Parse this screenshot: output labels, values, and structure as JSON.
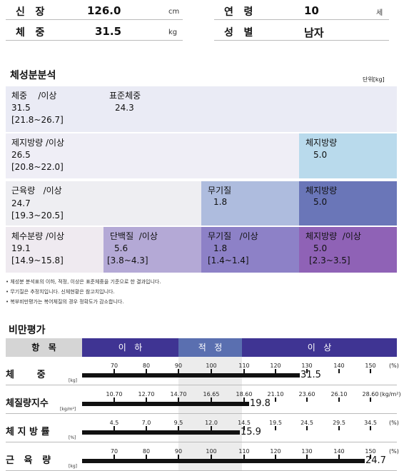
{
  "patient": {
    "height_label": "신   장",
    "height_value": "126.0",
    "height_unit": "cm",
    "age_label": "연   령",
    "age_value": "10",
    "age_unit": "세",
    "weight_label": "체   중",
    "weight_value": "31.5",
    "weight_unit": "kg",
    "sex_label": "성   별",
    "sex_value": "남자"
  },
  "composition": {
    "title": "체성분분석",
    "unit": "단위[kg]",
    "row1": {
      "name": "체중    /이상",
      "value": "31.5",
      "range": "[21.8~26.7]",
      "std_label": "표준체중",
      "std_value": "24.3"
    },
    "row2": {
      "name": "제지방량 /이상",
      "value": "26.5",
      "range": "[20.8~22.0]",
      "fat_label": "체지방량",
      "fat_value": "5.0"
    },
    "row3": {
      "name": "근육량   /이상",
      "value": "24.7",
      "range": "[19.3~20.5]",
      "min_label": "무기질",
      "min_value": "1.8",
      "fat_label": "체지방량",
      "fat_value": "5.0"
    },
    "row4": {
      "name": "체수분량 /이상",
      "value": "19.1",
      "range": "[14.9~15.8]",
      "prot_label": "단백질  /이상",
      "prot_value": "5.6",
      "prot_range": "[3.8~4.3]",
      "min_label": "무기질   /이상",
      "min_value": "1.8",
      "min_range": "[1.4~1.4]",
      "fat_label": "체지방량  /이상",
      "fat_value": "5.0",
      "fat_range": "[2.3~3.5]"
    },
    "notes": [
      "• 체성분 분석표의 이하, 적정, 이상은 표준체중을 기준으로 한 결과입니다.",
      "• 무기질은 추정치입니다.  신체현황은 참고치입니다.",
      "• 복부비만평가는 복어체질의 경우 정확도가 감소합니다."
    ]
  },
  "obesity": {
    "title": "비만평가",
    "col_item": "항   목",
    "col_low": "이   하",
    "col_normal": "적   정",
    "col_high": "이   상",
    "rows": [
      {
        "label": "체       중",
        "unit": "[kg]",
        "ticks": [
          "70",
          "80",
          "90",
          "100",
          "110",
          "120",
          "130",
          "140",
          "150"
        ],
        "tick_unit": "(%)",
        "value": "31.5",
        "fraction": 0.71
      },
      {
        "label": "체질량지수",
        "unit": "[kg/m²]",
        "ticks": [
          "10.70",
          "12.70",
          "14.70",
          "16.65",
          "18.60",
          "21.10",
          "23.60",
          "26.10",
          "28.60"
        ],
        "tick_unit": "(kg/m²)",
        "value": "19.8",
        "fraction": 0.545
      },
      {
        "label": "체 지 방 률",
        "unit": "[%]",
        "ticks": [
          "4.5",
          "7.0",
          "9.5",
          "12.0",
          "14.5",
          "19.5",
          "24.5",
          "29.5",
          "34.5"
        ],
        "tick_unit": "(%)",
        "value": "15.9",
        "fraction": 0.515
      },
      {
        "label": "근   육   량",
        "unit": "[kg]",
        "ticks": [
          "70",
          "80",
          "90",
          "100",
          "110",
          "120",
          "130",
          "140",
          "150"
        ],
        "tick_unit": "(%)",
        "value": "24.7",
        "fraction": 0.92
      }
    ]
  }
}
